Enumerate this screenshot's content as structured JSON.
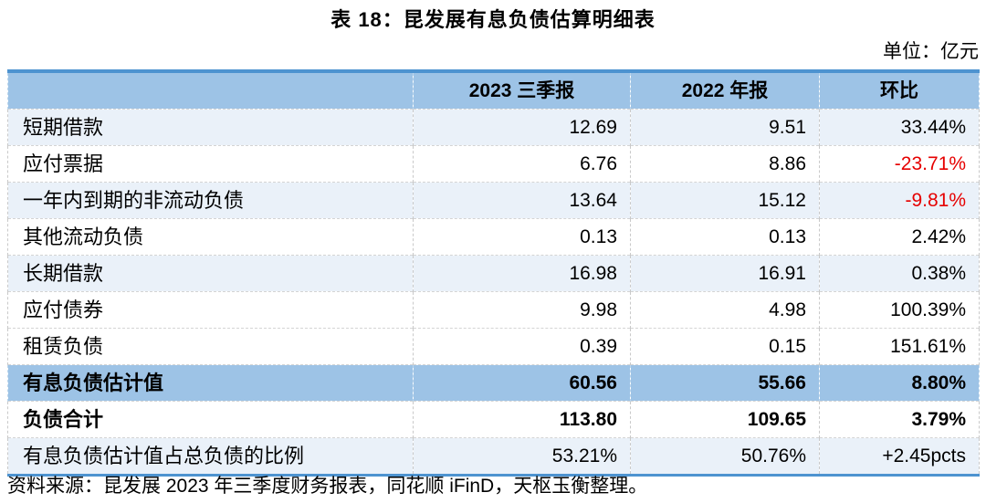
{
  "title": "表 18：昆发展有息负债估算明细表",
  "unit_note": "单位：亿元",
  "table": {
    "columns": [
      "",
      "2023 三季报",
      "2022 年报",
      "环比"
    ],
    "rows": [
      {
        "label": "短期借款",
        "v2023": "12.69",
        "v2022": "9.51",
        "qoq": "33.44%",
        "style": "tint",
        "bold": false,
        "qoq_negative": false
      },
      {
        "label": "应付票据",
        "v2023": "6.76",
        "v2022": "8.86",
        "qoq": "-23.71%",
        "style": "white",
        "bold": false,
        "qoq_negative": true
      },
      {
        "label": "一年内到期的非流动负债",
        "v2023": "13.64",
        "v2022": "15.12",
        "qoq": "-9.81%",
        "style": "tint",
        "bold": false,
        "qoq_negative": true
      },
      {
        "label": "其他流动负债",
        "v2023": "0.13",
        "v2022": "0.13",
        "qoq": "2.42%",
        "style": "white",
        "bold": false,
        "qoq_negative": false
      },
      {
        "label": "长期借款",
        "v2023": "16.98",
        "v2022": "16.91",
        "qoq": "0.38%",
        "style": "tint",
        "bold": false,
        "qoq_negative": false
      },
      {
        "label": "应付债券",
        "v2023": "9.98",
        "v2022": "4.98",
        "qoq": "100.39%",
        "style": "white",
        "bold": false,
        "qoq_negative": false
      },
      {
        "label": "租赁负债",
        "v2023": "0.39",
        "v2022": "0.15",
        "qoq": "151.61%",
        "style": "white",
        "bold": false,
        "qoq_negative": false
      },
      {
        "label": "有息负债估计值",
        "v2023": "60.56",
        "v2022": "55.66",
        "qoq": "8.80%",
        "style": "highlight",
        "bold": true,
        "qoq_negative": false
      },
      {
        "label": "负债合计",
        "v2023": "113.80",
        "v2022": "109.65",
        "qoq": "3.79%",
        "style": "white",
        "bold": true,
        "qoq_negative": false
      },
      {
        "label": "有息负债估计值占总负债的比例",
        "v2023": "53.21%",
        "v2022": "50.76%",
        "qoq": "+2.45pcts",
        "style": "tint",
        "bold": false,
        "qoq_negative": false
      }
    ]
  },
  "source_note": "资料来源：昆发展 2023 年三季度财务报表，同花顺 iFinD，天枢玉衡整理。",
  "colors": {
    "header_fill": "#9dc3e6",
    "highlight_fill": "#9dc3e6",
    "tint_fill": "#eaf1f9",
    "border_blue": "#4d93d0",
    "negative_red": "#e60000"
  }
}
